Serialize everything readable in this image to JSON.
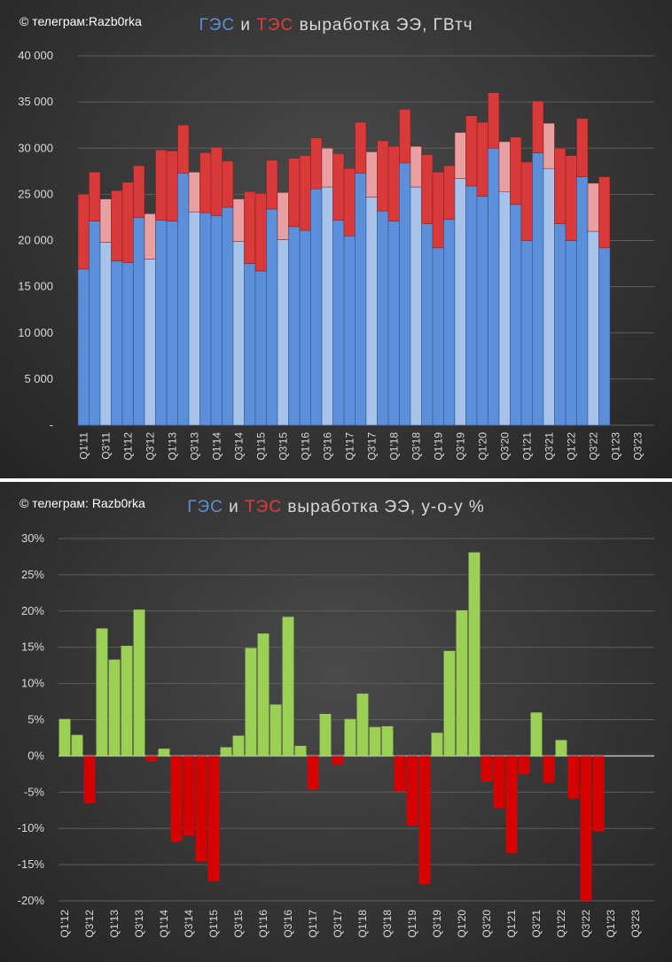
{
  "chart_data": [
    {
      "type": "bar",
      "stacked": true,
      "watermark": "© телеграм:Razb0rka",
      "title": {
        "hpp": "ГЭС",
        "and": "и",
        "tpp": "ТЭС",
        "rest": "выработка ЭЭ, ГВтч"
      },
      "ylim": [
        0,
        40000
      ],
      "yticks": [
        0,
        5000,
        10000,
        15000,
        20000,
        25000,
        30000,
        35000,
        40000
      ],
      "ytick_labels": [
        "-",
        "5 000",
        "10 000",
        "15 000",
        "20 000",
        "25 000",
        "30 000",
        "35 000",
        "40 000"
      ],
      "quarters": [
        "Q1'11",
        "Q2'11",
        "Q3'11",
        "Q4'11",
        "Q1'12",
        "Q2'12",
        "Q3'12",
        "Q4'12",
        "Q1'13",
        "Q2'13",
        "Q3'13",
        "Q4'13",
        "Q1'14",
        "Q2'14",
        "Q3'14",
        "Q4'14",
        "Q1'15",
        "Q2'15",
        "Q3'15",
        "Q4'15",
        "Q1'16",
        "Q2'16",
        "Q3'16",
        "Q4'16",
        "Q1'17",
        "Q2'17",
        "Q3'17",
        "Q4'17",
        "Q1'18",
        "Q2'18",
        "Q3'18",
        "Q4'18",
        "Q1'19",
        "Q2'19",
        "Q3'19",
        "Q4'19",
        "Q1'20",
        "Q2'20",
        "Q3'20",
        "Q4'20",
        "Q1'21",
        "Q2'21",
        "Q3'21",
        "Q4'21",
        "Q1'22",
        "Q2'22",
        "Q3'22",
        "Q4'22",
        "Q1'23",
        "Q2'23",
        "Q3'23",
        "Q4'23"
      ],
      "category_labels": [
        "Q1'11",
        "Q3'11",
        "Q1'12",
        "Q3'12",
        "Q1'13",
        "Q3'13",
        "Q1'14",
        "Q3'14",
        "Q1'15",
        "Q3'15",
        "Q1'16",
        "Q3'16",
        "Q1'17",
        "Q3'17",
        "Q1'18",
        "Q3'18",
        "Q1'19",
        "Q3'19",
        "Q1'20",
        "Q3'20",
        "Q1'21",
        "Q3'21",
        "Q1'22",
        "Q3'22",
        "Q1'23",
        "Q3'23"
      ],
      "highlight_quarter": "Q3",
      "series": [
        {
          "name": "ГЭС",
          "color": "#5b8fd9",
          "highlight_color": "#a8c3eb",
          "values": [
            16900,
            22100,
            19800,
            17800,
            17600,
            22500,
            18000,
            22200,
            22100,
            27300,
            23100,
            23000,
            22700,
            23600,
            19900,
            17500,
            16700,
            23400,
            20100,
            21500,
            21100,
            25600,
            25800,
            22200,
            20500,
            27300,
            24700,
            23200,
            22100,
            28400,
            25800,
            21800,
            19200,
            22300,
            26700,
            25900,
            24800,
            30000,
            25300,
            23900,
            20000,
            29500,
            27800,
            21800,
            20000,
            26900,
            21000,
            19200,
            null,
            null,
            null,
            null
          ]
        },
        {
          "name": "ТЭС",
          "color": "#d83a3a",
          "highlight_color": "#e9a0a0",
          "values": [
            8100,
            5300,
            4700,
            7600,
            8700,
            5600,
            4900,
            7600,
            7600,
            5200,
            4300,
            6500,
            7400,
            5000,
            4600,
            7800,
            8400,
            5300,
            5100,
            7400,
            8100,
            5500,
            4200,
            7200,
            7300,
            5500,
            4900,
            7600,
            8100,
            5800,
            4400,
            7500,
            8200,
            5800,
            5000,
            7600,
            8000,
            6000,
            5400,
            7300,
            8500,
            5600,
            4900,
            8200,
            9200,
            6300,
            5200,
            7700,
            null,
            null,
            null,
            null
          ]
        }
      ]
    },
    {
      "type": "bar",
      "watermark": "© телеграм: Razb0rka",
      "title": {
        "hpp": "ГЭС",
        "and": "и",
        "tpp": "ТЭС",
        "rest": "выработка ЭЭ, у-о-у %"
      },
      "ylim": [
        -20,
        30
      ],
      "yticks": [
        -20,
        -15,
        -10,
        -5,
        0,
        5,
        10,
        15,
        20,
        25,
        30
      ],
      "ytick_labels": [
        "-20%",
        "-15%",
        "-10%",
        "-5%",
        "0%",
        "5%",
        "10%",
        "15%",
        "20%",
        "25%",
        "30%"
      ],
      "positive_color": "#9bcf55",
      "negative_color": "#d60000",
      "quarters": [
        "Q1'12",
        "Q2'12",
        "Q3'12",
        "Q4'12",
        "Q1'13",
        "Q2'13",
        "Q3'13",
        "Q4'13",
        "Q1'14",
        "Q2'14",
        "Q3'14",
        "Q4'14",
        "Q1'15",
        "Q2'15",
        "Q3'15",
        "Q4'15",
        "Q1'16",
        "Q2'16",
        "Q3'16",
        "Q4'16",
        "Q1'17",
        "Q2'17",
        "Q3'17",
        "Q4'17",
        "Q1'18",
        "Q2'18",
        "Q3'18",
        "Q4'18",
        "Q1'19",
        "Q2'19",
        "Q3'19",
        "Q4'19",
        "Q1'20",
        "Q2'20",
        "Q3'20",
        "Q4'20",
        "Q1'21",
        "Q2'21",
        "Q3'21",
        "Q4'21",
        "Q1'22",
        "Q2'22",
        "Q3'22",
        "Q4'22",
        "Q1'23",
        "Q2'23",
        "Q3'23",
        "Q4'23"
      ],
      "category_labels": [
        "Q1'12",
        "Q3'12",
        "Q1'13",
        "Q3'13",
        "Q1'14",
        "Q3'14",
        "Q1'15",
        "Q3'15",
        "Q1'16",
        "Q3'16",
        "Q1'17",
        "Q3'17",
        "Q1'18",
        "Q3'18",
        "Q1'19",
        "Q3'19",
        "Q1'20",
        "Q3'20",
        "Q1'21",
        "Q3'21",
        "Q1'22",
        "Q3'22",
        "Q1'23",
        "Q3'23"
      ],
      "values": [
        5.1,
        2.9,
        -6.5,
        17.6,
        13.3,
        15.2,
        20.2,
        -0.7,
        1.0,
        -11.8,
        -11.0,
        -14.6,
        -17.3,
        1.2,
        2.8,
        14.9,
        16.9,
        7.1,
        19.2,
        1.4,
        -4.6,
        5.8,
        -1.2,
        5.1,
        8.6,
        4.0,
        4.1,
        -4.9,
        -9.6,
        -17.7,
        3.2,
        14.5,
        20.1,
        28.1,
        -3.5,
        -7.2,
        -13.4,
        -2.5,
        6.0,
        -3.7,
        2.2,
        -5.9,
        -20.0,
        -10.4,
        null,
        null,
        null,
        null
      ]
    }
  ]
}
